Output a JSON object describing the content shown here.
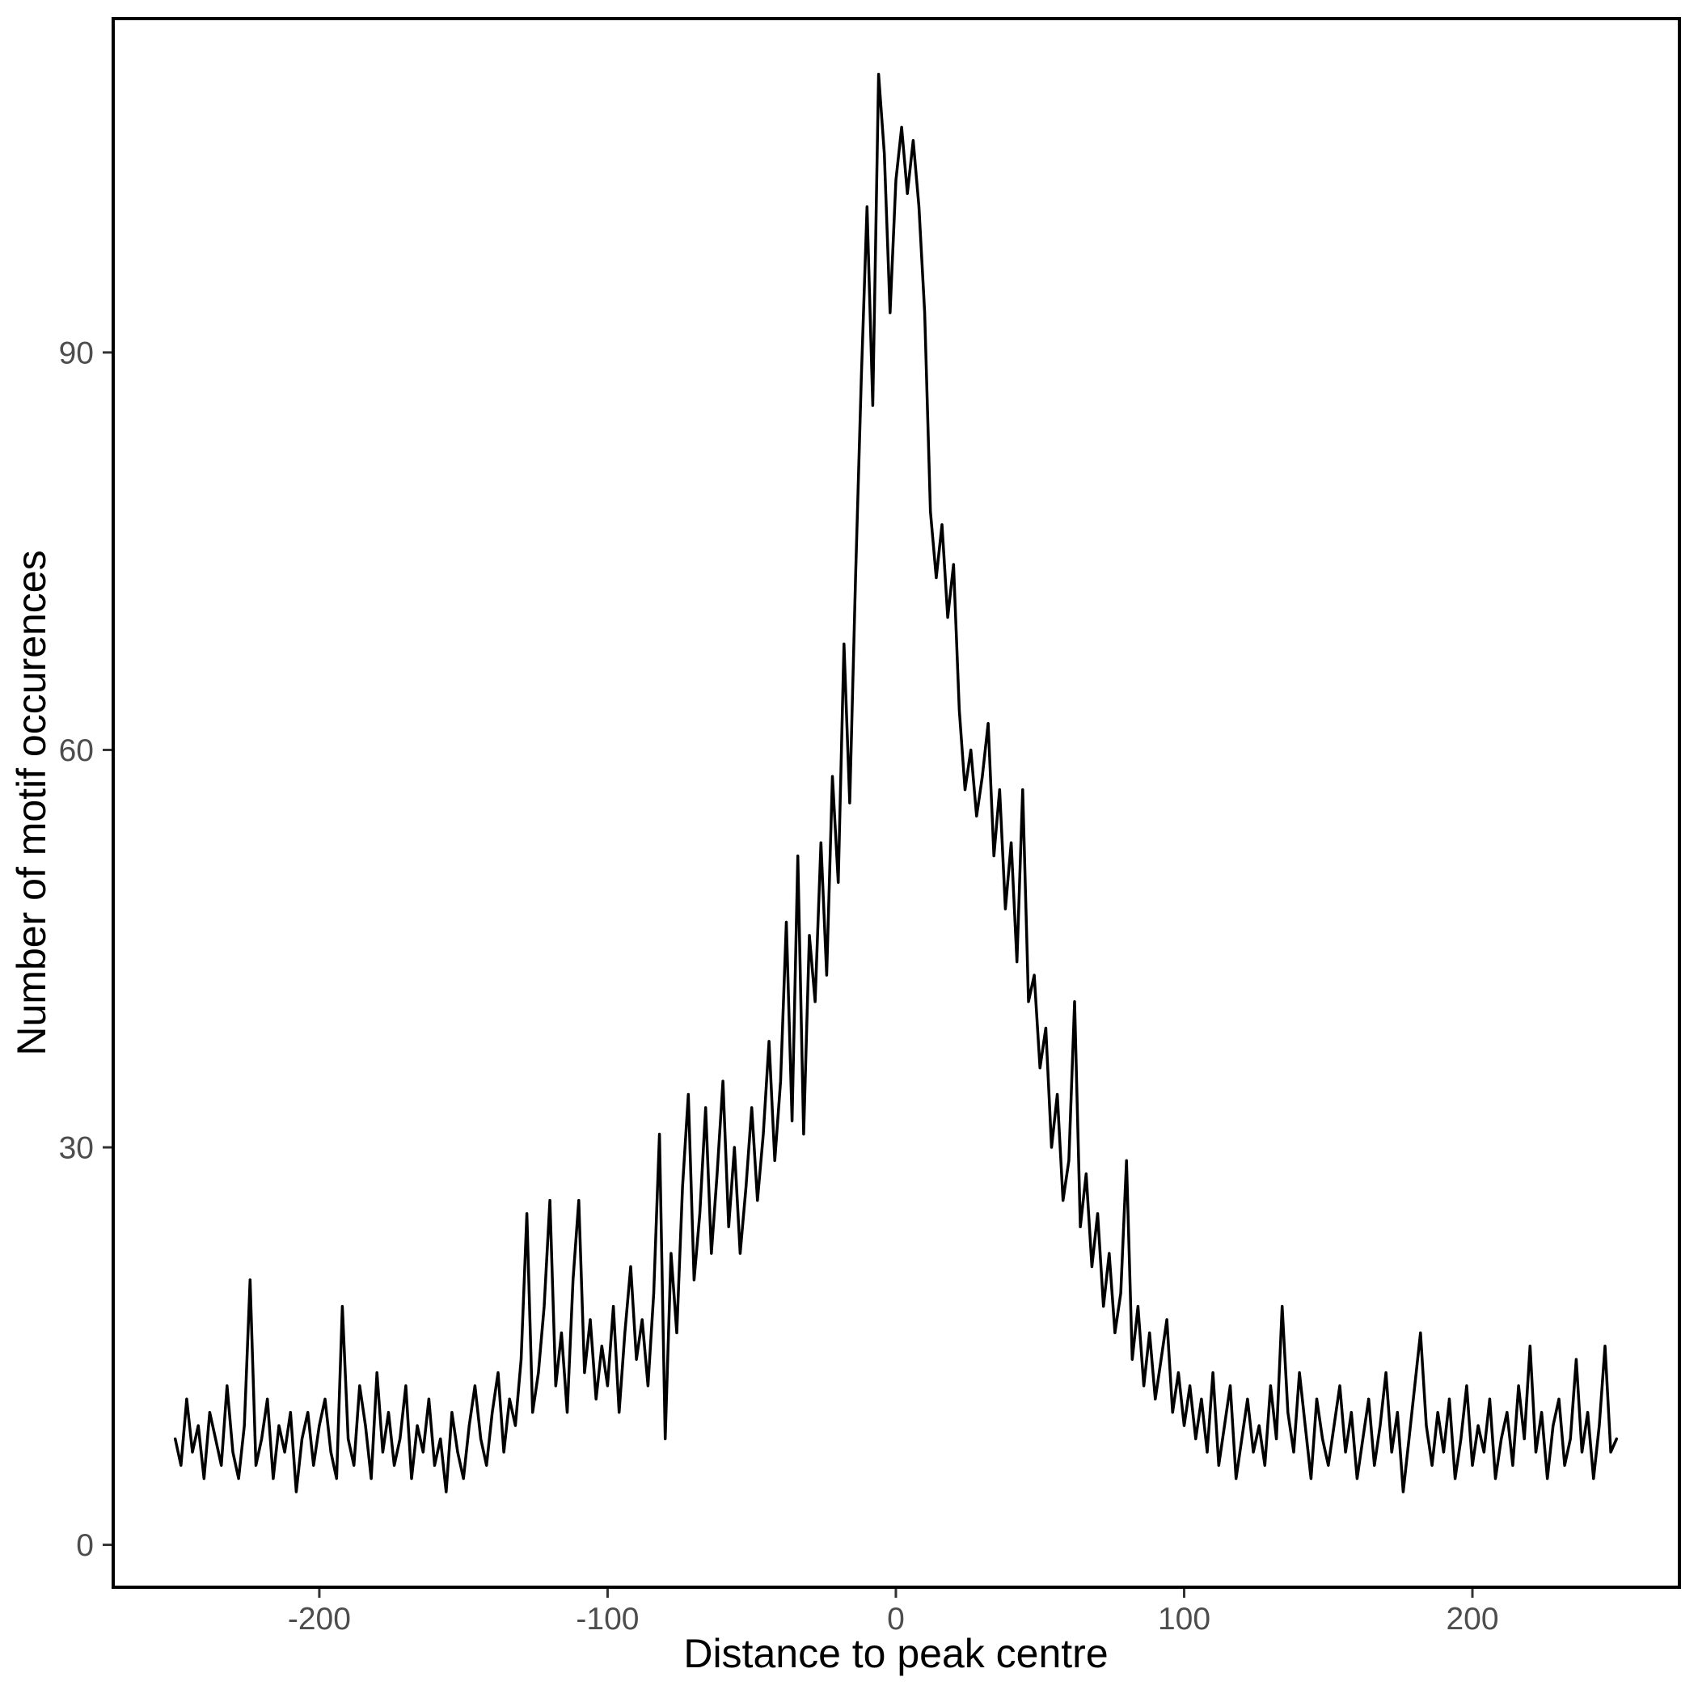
{
  "chart_data": {
    "type": "line",
    "title": "",
    "xlabel": "Distance to peak centre",
    "ylabel": "Number of motif occurences",
    "x_ticks": [
      -200,
      -100,
      0,
      100,
      200
    ],
    "y_ticks": [
      0,
      30,
      60,
      90
    ],
    "xlim": [
      -271.5,
      271.8
    ],
    "ylim": [
      -3.2,
      115.2
    ],
    "grid": "off",
    "legend": "none",
    "line_color": "#000000",
    "axis_text_color": "#4d4d4d",
    "tick_color": "#333333",
    "border_color": "#000000",
    "background_color": "#ffffff",
    "series": [
      {
        "name": "motif occurrences",
        "points": [
          [
            -250,
            8
          ],
          [
            -248,
            6
          ],
          [
            -246,
            11
          ],
          [
            -244,
            7
          ],
          [
            -242,
            9
          ],
          [
            -240,
            5
          ],
          [
            -238,
            10
          ],
          [
            -236,
            8
          ],
          [
            -234,
            6
          ],
          [
            -232,
            12
          ],
          [
            -230,
            7
          ],
          [
            -228,
            5
          ],
          [
            -226,
            9
          ],
          [
            -224,
            20
          ],
          [
            -222,
            6
          ],
          [
            -220,
            8
          ],
          [
            -218,
            11
          ],
          [
            -216,
            5
          ],
          [
            -214,
            9
          ],
          [
            -212,
            7
          ],
          [
            -210,
            10
          ],
          [
            -208,
            4
          ],
          [
            -206,
            8
          ],
          [
            -204,
            10
          ],
          [
            -202,
            6
          ],
          [
            -200,
            9
          ],
          [
            -198,
            11
          ],
          [
            -196,
            7
          ],
          [
            -194,
            5
          ],
          [
            -192,
            18
          ],
          [
            -190,
            8
          ],
          [
            -188,
            6
          ],
          [
            -186,
            12
          ],
          [
            -184,
            9
          ],
          [
            -182,
            5
          ],
          [
            -180,
            13
          ],
          [
            -178,
            7
          ],
          [
            -176,
            10
          ],
          [
            -174,
            6
          ],
          [
            -172,
            8
          ],
          [
            -170,
            12
          ],
          [
            -168,
            5
          ],
          [
            -166,
            9
          ],
          [
            -164,
            7
          ],
          [
            -162,
            11
          ],
          [
            -160,
            6
          ],
          [
            -158,
            8
          ],
          [
            -156,
            4
          ],
          [
            -154,
            10
          ],
          [
            -152,
            7
          ],
          [
            -150,
            5
          ],
          [
            -148,
            9
          ],
          [
            -146,
            12
          ],
          [
            -144,
            8
          ],
          [
            -142,
            6
          ],
          [
            -140,
            10
          ],
          [
            -138,
            13
          ],
          [
            -136,
            7
          ],
          [
            -134,
            11
          ],
          [
            -132,
            9
          ],
          [
            -130,
            14
          ],
          [
            -128,
            25
          ],
          [
            -126,
            10
          ],
          [
            -124,
            13
          ],
          [
            -122,
            18
          ],
          [
            -120,
            26
          ],
          [
            -118,
            12
          ],
          [
            -116,
            16
          ],
          [
            -114,
            10
          ],
          [
            -112,
            20
          ],
          [
            -110,
            26
          ],
          [
            -108,
            13
          ],
          [
            -106,
            17
          ],
          [
            -104,
            11
          ],
          [
            -102,
            15
          ],
          [
            -100,
            12
          ],
          [
            -98,
            18
          ],
          [
            -96,
            10
          ],
          [
            -94,
            16
          ],
          [
            -92,
            21
          ],
          [
            -90,
            14
          ],
          [
            -88,
            17
          ],
          [
            -86,
            12
          ],
          [
            -84,
            19
          ],
          [
            -82,
            31
          ],
          [
            -80,
            8
          ],
          [
            -78,
            22
          ],
          [
            -76,
            16
          ],
          [
            -74,
            27
          ],
          [
            -72,
            34
          ],
          [
            -70,
            20
          ],
          [
            -68,
            25
          ],
          [
            -66,
            33
          ],
          [
            -64,
            22
          ],
          [
            -62,
            28
          ],
          [
            -60,
            35
          ],
          [
            -58,
            24
          ],
          [
            -56,
            30
          ],
          [
            -54,
            22
          ],
          [
            -52,
            27
          ],
          [
            -50,
            33
          ],
          [
            -48,
            26
          ],
          [
            -46,
            31
          ],
          [
            -44,
            38
          ],
          [
            -42,
            29
          ],
          [
            -40,
            35
          ],
          [
            -38,
            47
          ],
          [
            -36,
            32
          ],
          [
            -34,
            52
          ],
          [
            -32,
            31
          ],
          [
            -30,
            46
          ],
          [
            -28,
            41
          ],
          [
            -26,
            53
          ],
          [
            -24,
            43
          ],
          [
            -22,
            58
          ],
          [
            -20,
            50
          ],
          [
            -18,
            68
          ],
          [
            -16,
            56
          ],
          [
            -14,
            73
          ],
          [
            -12,
            88
          ],
          [
            -10,
            101
          ],
          [
            -8,
            86
          ],
          [
            -6,
            111
          ],
          [
            -4,
            105
          ],
          [
            -2,
            93
          ],
          [
            0,
            103
          ],
          [
            2,
            107
          ],
          [
            4,
            102
          ],
          [
            6,
            106
          ],
          [
            8,
            101
          ],
          [
            10,
            93
          ],
          [
            12,
            78
          ],
          [
            14,
            73
          ],
          [
            16,
            77
          ],
          [
            18,
            70
          ],
          [
            20,
            74
          ],
          [
            22,
            63
          ],
          [
            24,
            57
          ],
          [
            26,
            60
          ],
          [
            28,
            55
          ],
          [
            30,
            58
          ],
          [
            32,
            62
          ],
          [
            34,
            52
          ],
          [
            36,
            57
          ],
          [
            38,
            48
          ],
          [
            40,
            53
          ],
          [
            42,
            44
          ],
          [
            44,
            57
          ],
          [
            46,
            41
          ],
          [
            48,
            43
          ],
          [
            50,
            36
          ],
          [
            52,
            39
          ],
          [
            54,
            30
          ],
          [
            56,
            34
          ],
          [
            58,
            26
          ],
          [
            60,
            29
          ],
          [
            62,
            41
          ],
          [
            64,
            24
          ],
          [
            66,
            28
          ],
          [
            68,
            21
          ],
          [
            70,
            25
          ],
          [
            72,
            18
          ],
          [
            74,
            22
          ],
          [
            76,
            16
          ],
          [
            78,
            19
          ],
          [
            80,
            29
          ],
          [
            82,
            14
          ],
          [
            84,
            18
          ],
          [
            86,
            12
          ],
          [
            88,
            16
          ],
          [
            90,
            11
          ],
          [
            92,
            14
          ],
          [
            94,
            17
          ],
          [
            96,
            10
          ],
          [
            98,
            13
          ],
          [
            100,
            9
          ],
          [
            102,
            12
          ],
          [
            104,
            8
          ],
          [
            106,
            11
          ],
          [
            108,
            7
          ],
          [
            110,
            13
          ],
          [
            112,
            6
          ],
          [
            114,
            9
          ],
          [
            116,
            12
          ],
          [
            118,
            5
          ],
          [
            120,
            8
          ],
          [
            122,
            11
          ],
          [
            124,
            7
          ],
          [
            126,
            9
          ],
          [
            128,
            6
          ],
          [
            130,
            12
          ],
          [
            132,
            8
          ],
          [
            134,
            18
          ],
          [
            136,
            10
          ],
          [
            138,
            7
          ],
          [
            140,
            13
          ],
          [
            142,
            9
          ],
          [
            144,
            5
          ],
          [
            146,
            11
          ],
          [
            148,
            8
          ],
          [
            150,
            6
          ],
          [
            152,
            9
          ],
          [
            154,
            12
          ],
          [
            156,
            7
          ],
          [
            158,
            10
          ],
          [
            160,
            5
          ],
          [
            162,
            8
          ],
          [
            164,
            11
          ],
          [
            166,
            6
          ],
          [
            168,
            9
          ],
          [
            170,
            13
          ],
          [
            172,
            7
          ],
          [
            174,
            10
          ],
          [
            176,
            4
          ],
          [
            178,
            8
          ],
          [
            180,
            12
          ],
          [
            182,
            16
          ],
          [
            184,
            9
          ],
          [
            186,
            6
          ],
          [
            188,
            10
          ],
          [
            190,
            7
          ],
          [
            192,
            11
          ],
          [
            194,
            5
          ],
          [
            196,
            8
          ],
          [
            198,
            12
          ],
          [
            200,
            6
          ],
          [
            202,
            9
          ],
          [
            204,
            7
          ],
          [
            206,
            11
          ],
          [
            208,
            5
          ],
          [
            210,
            8
          ],
          [
            212,
            10
          ],
          [
            214,
            6
          ],
          [
            216,
            12
          ],
          [
            218,
            8
          ],
          [
            220,
            15
          ],
          [
            222,
            7
          ],
          [
            224,
            10
          ],
          [
            226,
            5
          ],
          [
            228,
            9
          ],
          [
            230,
            11
          ],
          [
            232,
            6
          ],
          [
            234,
            8
          ],
          [
            236,
            14
          ],
          [
            238,
            7
          ],
          [
            240,
            10
          ],
          [
            242,
            5
          ],
          [
            244,
            9
          ],
          [
            246,
            15
          ],
          [
            248,
            7
          ],
          [
            250,
            8
          ]
        ]
      }
    ]
  }
}
